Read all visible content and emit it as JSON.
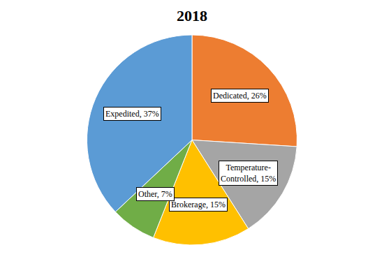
{
  "chart_data": {
    "type": "pie",
    "title": "2018",
    "categories": [
      "Dedicated",
      "Temperature-Controlled",
      "Brokerage",
      "Other",
      "Expedited"
    ],
    "values": [
      26,
      15,
      15,
      7,
      37
    ],
    "value_labels": [
      "Dedicated, 26%",
      "Temperature-Controlled, 15%",
      "Brokerage, 15%",
      "Other, 7%",
      "Expedited, 37%"
    ],
    "colors": [
      "#ED7D31",
      "#A5A5A5",
      "#FFC000",
      "#70AD47",
      "#5B9BD5"
    ],
    "data_labels": true
  }
}
